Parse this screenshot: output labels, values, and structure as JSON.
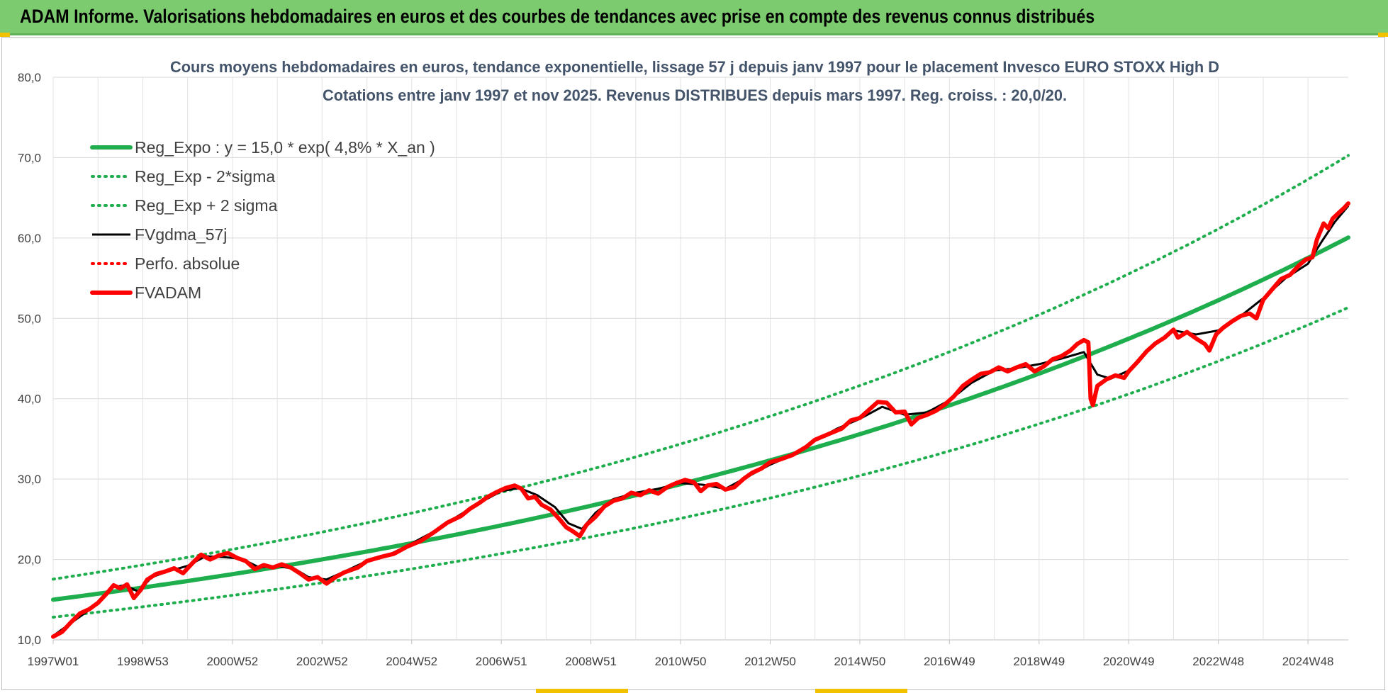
{
  "banner": {
    "title": "ADAM Informe. Valorisations hebdomadaires en euros et des courbes de tendances avec prise en compte des revenus connus distribués"
  },
  "colors": {
    "banner_bg": "#7ccb6f",
    "trend_green": "#1fae4e",
    "price_red": "#ff0000",
    "smooth_black": "#000000",
    "title_text": "#44546a"
  },
  "chart_data": {
    "type": "line",
    "title_line1": "Cours moyens hebdomadaires en euros, tendance exponentielle, lissage 57 j depuis janv 1997  pour le placement Invesco EURO STOXX High D",
    "title_line2": "Cotations entre janv 1997 et nov 2025. Revenus DISTRIBUES depuis mars 1997. Reg. croiss. : 20,0/20.",
    "ylim": [
      10,
      80
    ],
    "xlim": [
      1997.0,
      2025.9
    ],
    "y_ticks": [
      "10,0",
      "20,0",
      "30,0",
      "40,0",
      "50,0",
      "60,0",
      "70,0",
      "80,0"
    ],
    "x_ticks": [
      {
        "label": "1997W01",
        "t": 1997.0
      },
      {
        "label": "1998W53",
        "t": 1999.0
      },
      {
        "label": "2000W52",
        "t": 2001.0
      },
      {
        "label": "2002W52",
        "t": 2003.0
      },
      {
        "label": "2004W52",
        "t": 2005.0
      },
      {
        "label": "2006W51",
        "t": 2007.0
      },
      {
        "label": "2008W51",
        "t": 2009.0
      },
      {
        "label": "2010W50",
        "t": 2011.0
      },
      {
        "label": "2012W50",
        "t": 2013.0
      },
      {
        "label": "2014W50",
        "t": 2015.0
      },
      {
        "label": "2016W49",
        "t": 2017.0
      },
      {
        "label": "2018W49",
        "t": 2019.0
      },
      {
        "label": "2020W49",
        "t": 2021.0
      },
      {
        "label": "2022W48",
        "t": 2023.0
      },
      {
        "label": "2024W48",
        "t": 2025.0
      }
    ],
    "grid": true,
    "legend_position": "top-left",
    "series": [
      {
        "name": "Reg_Expo : y = 15,0 * exp( 4,8% *  X_an )",
        "style": "solid-thick",
        "color": "#1fae4e",
        "formula": {
          "a": 15.0,
          "r": 0.048,
          "factor": 1.0
        }
      },
      {
        "name": "Reg_Exp - 2*sigma",
        "style": "dotted",
        "color": "#1fae4e",
        "formula": {
          "a": 15.0,
          "r": 0.048,
          "factor": 0.855
        }
      },
      {
        "name": "Reg_Exp + 2 sigma",
        "style": "dotted",
        "color": "#1fae4e",
        "formula": {
          "a": 15.0,
          "r": 0.048,
          "factor": 1.17
        }
      },
      {
        "name": "FVgdma_57j",
        "style": "solid",
        "color": "#000000",
        "points": [
          [
            1997.0,
            10.5
          ],
          [
            1997.5,
            12.5
          ],
          [
            1998.0,
            14.5
          ],
          [
            1998.3,
            16.5
          ],
          [
            1998.6,
            16.8
          ],
          [
            1998.9,
            16.0
          ],
          [
            1999.2,
            17.8
          ],
          [
            1999.6,
            18.6
          ],
          [
            2000.0,
            19.2
          ],
          [
            2000.4,
            20.4
          ],
          [
            2000.8,
            20.3
          ],
          [
            2001.2,
            20.1
          ],
          [
            2001.6,
            19.0
          ],
          [
            2002.0,
            19.2
          ],
          [
            2002.4,
            18.8
          ],
          [
            2002.7,
            17.8
          ],
          [
            2003.1,
            17.5
          ],
          [
            2003.5,
            18.5
          ],
          [
            2004.0,
            19.8
          ],
          [
            2004.5,
            20.6
          ],
          [
            2005.0,
            22.0
          ],
          [
            2005.5,
            23.5
          ],
          [
            2006.0,
            25.3
          ],
          [
            2006.5,
            27.0
          ],
          [
            2007.0,
            28.5
          ],
          [
            2007.4,
            28.9
          ],
          [
            2007.8,
            28.0
          ],
          [
            2008.2,
            26.5
          ],
          [
            2008.5,
            24.5
          ],
          [
            2008.8,
            23.8
          ],
          [
            2009.1,
            25.8
          ],
          [
            2009.5,
            27.5
          ],
          [
            2010.0,
            28.3
          ],
          [
            2010.5,
            28.8
          ],
          [
            2011.0,
            29.5
          ],
          [
            2011.5,
            29.3
          ],
          [
            2012.0,
            28.8
          ],
          [
            2012.5,
            30.3
          ],
          [
            2013.0,
            31.8
          ],
          [
            2013.5,
            33.0
          ],
          [
            2014.0,
            34.8
          ],
          [
            2014.5,
            36.3
          ],
          [
            2015.0,
            37.5
          ],
          [
            2015.5,
            39.0
          ],
          [
            2016.0,
            38.0
          ],
          [
            2016.5,
            38.3
          ],
          [
            2017.0,
            39.8
          ],
          [
            2017.5,
            42.0
          ],
          [
            2018.0,
            43.5
          ],
          [
            2018.5,
            43.8
          ],
          [
            2019.0,
            44.3
          ],
          [
            2019.5,
            45.0
          ],
          [
            2020.0,
            45.8
          ],
          [
            2020.3,
            43.0
          ],
          [
            2020.6,
            42.5
          ],
          [
            2021.0,
            43.5
          ],
          [
            2021.5,
            46.5
          ],
          [
            2022.0,
            48.5
          ],
          [
            2022.5,
            48.0
          ],
          [
            2023.0,
            48.5
          ],
          [
            2023.5,
            50.3
          ],
          [
            2024.0,
            52.5
          ],
          [
            2024.5,
            55.0
          ],
          [
            2025.0,
            56.8
          ],
          [
            2025.3,
            59.5
          ],
          [
            2025.6,
            62.0
          ],
          [
            2025.9,
            64.0
          ]
        ]
      },
      {
        "name": "Perfo. absolue",
        "style": "dotted",
        "color": "#ff0000",
        "points": []
      },
      {
        "name": "FVADAM",
        "style": "solid-thick",
        "color": "#ff0000",
        "points": [
          [
            1997.0,
            10.4
          ],
          [
            1997.2,
            11.0
          ],
          [
            1997.4,
            12.2
          ],
          [
            1997.6,
            13.3
          ],
          [
            1997.8,
            13.8
          ],
          [
            1998.0,
            14.6
          ],
          [
            1998.2,
            15.8
          ],
          [
            1998.35,
            16.8
          ],
          [
            1998.5,
            16.4
          ],
          [
            1998.65,
            16.9
          ],
          [
            1998.8,
            15.2
          ],
          [
            1998.95,
            16.2
          ],
          [
            1999.1,
            17.5
          ],
          [
            1999.3,
            18.2
          ],
          [
            1999.5,
            18.5
          ],
          [
            1999.7,
            18.9
          ],
          [
            1999.9,
            18.3
          ],
          [
            2000.1,
            19.5
          ],
          [
            2000.3,
            20.6
          ],
          [
            2000.5,
            20.0
          ],
          [
            2000.7,
            20.5
          ],
          [
            2000.9,
            20.8
          ],
          [
            2001.1,
            20.2
          ],
          [
            2001.3,
            19.8
          ],
          [
            2001.5,
            18.8
          ],
          [
            2001.7,
            19.3
          ],
          [
            2001.9,
            19.0
          ],
          [
            2002.1,
            19.4
          ],
          [
            2002.3,
            19.0
          ],
          [
            2002.5,
            18.3
          ],
          [
            2002.7,
            17.5
          ],
          [
            2002.9,
            17.8
          ],
          [
            2003.1,
            17.0
          ],
          [
            2003.3,
            17.8
          ],
          [
            2003.5,
            18.4
          ],
          [
            2003.8,
            19.0
          ],
          [
            2004.0,
            19.8
          ],
          [
            2004.3,
            20.3
          ],
          [
            2004.6,
            20.7
          ],
          [
            2004.9,
            21.6
          ],
          [
            2005.2,
            22.3
          ],
          [
            2005.5,
            23.4
          ],
          [
            2005.8,
            24.6
          ],
          [
            2006.1,
            25.4
          ],
          [
            2006.3,
            26.3
          ],
          [
            2006.5,
            27.0
          ],
          [
            2006.7,
            27.8
          ],
          [
            2006.9,
            28.4
          ],
          [
            2007.1,
            28.9
          ],
          [
            2007.3,
            29.2
          ],
          [
            2007.45,
            28.8
          ],
          [
            2007.6,
            27.6
          ],
          [
            2007.75,
            27.8
          ],
          [
            2007.9,
            26.8
          ],
          [
            2008.1,
            26.2
          ],
          [
            2008.3,
            25.0
          ],
          [
            2008.45,
            24.0
          ],
          [
            2008.6,
            23.5
          ],
          [
            2008.75,
            22.9
          ],
          [
            2008.9,
            24.3
          ],
          [
            2009.1,
            25.3
          ],
          [
            2009.3,
            26.6
          ],
          [
            2009.5,
            27.3
          ],
          [
            2009.7,
            27.6
          ],
          [
            2009.9,
            28.3
          ],
          [
            2010.1,
            28.0
          ],
          [
            2010.3,
            28.6
          ],
          [
            2010.5,
            28.2
          ],
          [
            2010.7,
            29.0
          ],
          [
            2010.9,
            29.5
          ],
          [
            2011.1,
            29.9
          ],
          [
            2011.3,
            29.6
          ],
          [
            2011.45,
            28.5
          ],
          [
            2011.6,
            29.2
          ],
          [
            2011.8,
            29.4
          ],
          [
            2012.0,
            28.7
          ],
          [
            2012.2,
            29.0
          ],
          [
            2012.4,
            30.0
          ],
          [
            2012.6,
            30.8
          ],
          [
            2012.8,
            31.3
          ],
          [
            2013.0,
            32.1
          ],
          [
            2013.2,
            32.4
          ],
          [
            2013.5,
            33.0
          ],
          [
            2013.8,
            34.0
          ],
          [
            2014.0,
            34.9
          ],
          [
            2014.3,
            35.6
          ],
          [
            2014.6,
            36.3
          ],
          [
            2014.8,
            37.3
          ],
          [
            2015.0,
            37.6
          ],
          [
            2015.2,
            38.6
          ],
          [
            2015.4,
            39.6
          ],
          [
            2015.6,
            39.5
          ],
          [
            2015.8,
            38.3
          ],
          [
            2016.0,
            38.4
          ],
          [
            2016.15,
            36.8
          ],
          [
            2016.3,
            37.6
          ],
          [
            2016.5,
            38.0
          ],
          [
            2016.7,
            38.5
          ],
          [
            2016.9,
            39.3
          ],
          [
            2017.1,
            40.3
          ],
          [
            2017.3,
            41.6
          ],
          [
            2017.5,
            42.4
          ],
          [
            2017.7,
            43.1
          ],
          [
            2017.9,
            43.3
          ],
          [
            2018.1,
            43.9
          ],
          [
            2018.3,
            43.4
          ],
          [
            2018.5,
            43.9
          ],
          [
            2018.7,
            44.3
          ],
          [
            2018.9,
            43.4
          ],
          [
            2019.1,
            44.0
          ],
          [
            2019.3,
            44.9
          ],
          [
            2019.5,
            45.3
          ],
          [
            2019.7,
            46.0
          ],
          [
            2019.85,
            46.8
          ],
          [
            2020.0,
            47.3
          ],
          [
            2020.1,
            47.0
          ],
          [
            2020.15,
            40.0
          ],
          [
            2020.2,
            39.2
          ],
          [
            2020.3,
            41.6
          ],
          [
            2020.5,
            42.4
          ],
          [
            2020.7,
            42.9
          ],
          [
            2020.9,
            42.6
          ],
          [
            2021.0,
            43.4
          ],
          [
            2021.2,
            44.6
          ],
          [
            2021.4,
            45.9
          ],
          [
            2021.6,
            46.9
          ],
          [
            2021.8,
            47.6
          ],
          [
            2022.0,
            48.6
          ],
          [
            2022.1,
            47.6
          ],
          [
            2022.3,
            48.3
          ],
          [
            2022.5,
            47.5
          ],
          [
            2022.7,
            46.8
          ],
          [
            2022.8,
            46.0
          ],
          [
            2022.95,
            48.0
          ],
          [
            2023.1,
            48.8
          ],
          [
            2023.3,
            49.6
          ],
          [
            2023.5,
            50.3
          ],
          [
            2023.7,
            50.6
          ],
          [
            2023.85,
            50.0
          ],
          [
            2024.0,
            52.3
          ],
          [
            2024.2,
            53.6
          ],
          [
            2024.4,
            54.9
          ],
          [
            2024.6,
            55.4
          ],
          [
            2024.8,
            56.6
          ],
          [
            2024.95,
            57.3
          ],
          [
            2025.1,
            57.6
          ],
          [
            2025.2,
            59.8
          ],
          [
            2025.35,
            61.8
          ],
          [
            2025.45,
            61.2
          ],
          [
            2025.55,
            62.4
          ],
          [
            2025.7,
            63.2
          ],
          [
            2025.8,
            63.7
          ],
          [
            2025.9,
            64.3
          ]
        ]
      }
    ]
  }
}
